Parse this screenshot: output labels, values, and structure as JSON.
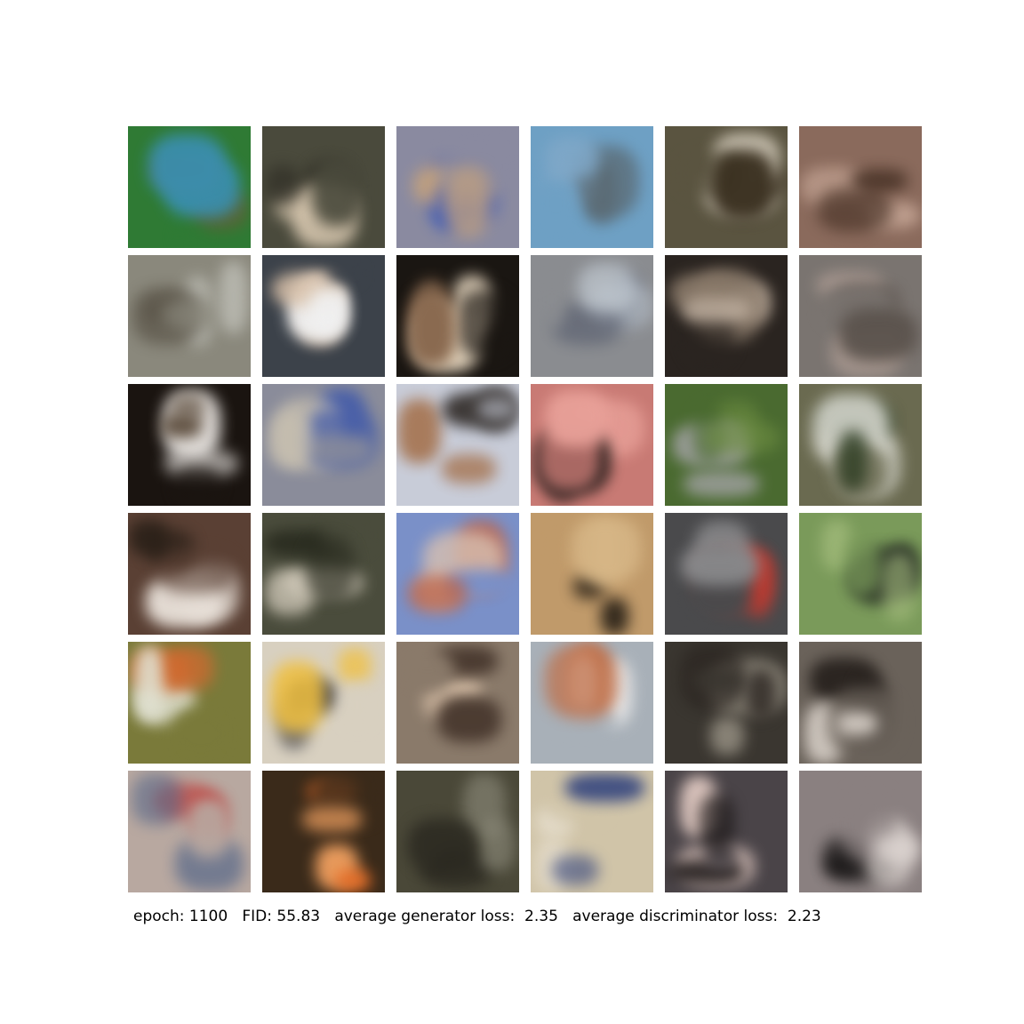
{
  "caption": {
    "epoch_label": "epoch:",
    "epoch_value": "1100",
    "fid_label": "FID:",
    "fid_value": "55.83",
    "gen_loss_label": "average generator loss:",
    "gen_loss_value": "2.35",
    "disc_loss_label": "average discriminator loss:",
    "disc_loss_value": "2.23"
  },
  "samples": [
    {
      "bg": "#2f7a34",
      "c1": "#6b5a38",
      "c2": "#3a8fb0"
    },
    {
      "bg": "#4a4a3c",
      "c1": "#d8c8b0",
      "c2": "#2e2c24"
    },
    {
      "bg": "#8a8aa0",
      "c1": "#3a58b8",
      "c2": "#c0a080"
    },
    {
      "bg": "#6ea0c4",
      "c1": "#5a6870",
      "c2": "#80a8c8"
    },
    {
      "bg": "#5a5440",
      "c1": "#d8d0c0",
      "c2": "#3a3020"
    },
    {
      "bg": "#8a6a5c",
      "c1": "#c0a090",
      "c2": "#4a3428"
    },
    {
      "bg": "#8a887c",
      "c1": "#5a5448",
      "c2": "#c0c0b8"
    },
    {
      "bg": "#3c424a",
      "c1": "#d8c0a8",
      "c2": "#f0f0f0"
    },
    {
      "bg": "#1a1612",
      "c1": "#f0e0c8",
      "c2": "#8a6a50"
    },
    {
      "bg": "#8a8c90",
      "c1": "#5a6070",
      "c2": "#c0c8d0"
    },
    {
      "bg": "#2a2420",
      "c1": "#8a7a6a",
      "c2": "#c0b0a0"
    },
    {
      "bg": "#7a7470",
      "c1": "#a89890",
      "c2": "#5a524c"
    },
    {
      "bg": "#1a1410",
      "c1": "#e8e4e0",
      "c2": "#5a4a3a"
    },
    {
      "bg": "#8a8c9a",
      "c1": "#4a60a8",
      "c2": "#c8c0b0"
    },
    {
      "bg": "#c8ccd8",
      "c1": "#2a2420",
      "c2": "#a87a5a"
    },
    {
      "bg": "#c87a74",
      "c1": "#1e1a18",
      "c2": "#e8a098"
    },
    {
      "bg": "#4a6a30",
      "c1": "#b8b0c0",
      "c2": "#6a8a40"
    },
    {
      "bg": "#6a6a50",
      "c1": "#e0e0d8",
      "c2": "#2a3a20"
    },
    {
      "bg": "#5a4034",
      "c1": "#e8e0d8",
      "c2": "#2a2018"
    },
    {
      "bg": "#4a4c3c",
      "c1": "#d8d0c0",
      "c2": "#2a2c20"
    },
    {
      "bg": "#7a90c8",
      "c1": "#d8c0b0",
      "c2": "#c06040"
    },
    {
      "bg": "#c09a6a",
      "c1": "#2a2218",
      "c2": "#d8b888"
    },
    {
      "bg": "#4a4a4c",
      "c1": "#c03a30",
      "c2": "#8a8a8c"
    },
    {
      "bg": "#7a9a5a",
      "c1": "#141618",
      "c2": "#a8c080"
    },
    {
      "bg": "#7a7a3a",
      "c1": "#e0e0d0",
      "c2": "#d06a30"
    },
    {
      "bg": "#d8d0c0",
      "c1": "#3a3a40",
      "c2": "#f0c040"
    },
    {
      "bg": "#8a7a6a",
      "c1": "#d8c0a8",
      "c2": "#4a3a30"
    },
    {
      "bg": "#a8b0b8",
      "c1": "#e8e8e8",
      "c2": "#c06a40"
    },
    {
      "bg": "#3a3630",
      "c1": "#8a8478",
      "c2": "#2a2420"
    },
    {
      "bg": "#6a625a",
      "c1": "#2a2420",
      "c2": "#d8d0c8"
    },
    {
      "bg": "#b8a8a0",
      "c1": "#c02a28",
      "c2": "#5a6a8a"
    },
    {
      "bg": "#3a2a1a",
      "c1": "#e8702a",
      "c2": "#f0a060"
    },
    {
      "bg": "#4a4838",
      "c1": "#8a8878",
      "c2": "#2a2820"
    },
    {
      "bg": "#d0c4a8",
      "c1": "#e8e0d0",
      "c2": "#3a4a80"
    },
    {
      "bg": "#4a4448",
      "c1": "#e8d0c8",
      "c2": "#181414"
    },
    {
      "bg": "#8a8080",
      "c1": "#141212",
      "c2": "#e0d8d4"
    }
  ]
}
